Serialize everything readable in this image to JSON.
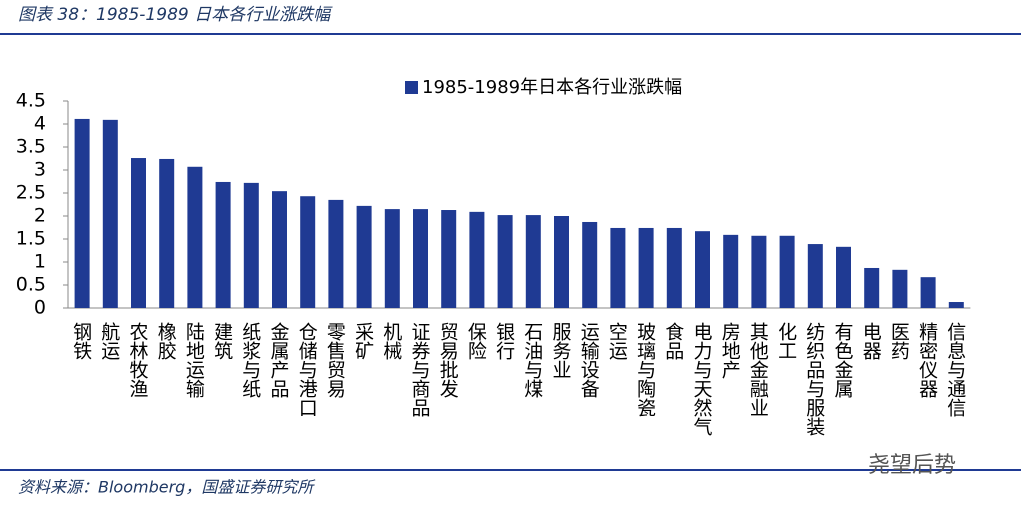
{
  "chart_data": {
    "type": "bar",
    "title": "图表 38：1985-1989 日本各行业涨跌幅",
    "categories": [
      "钢铁",
      "航运",
      "农林牧渔",
      "橡胶",
      "陆地运输",
      "建筑",
      "纸浆与纸",
      "金属产品",
      "仓储与港口",
      "零售贸易",
      "采矿",
      "机械",
      "证券与商品",
      "贸易批发",
      "保险",
      "银行",
      "石油与煤",
      "服务业",
      "运输设备",
      "空运",
      "玻璃与陶瓷",
      "食品",
      "电力与天然气",
      "房地产",
      "其他金融业",
      "化工",
      "纺织品与服装",
      "有色金属",
      "电器",
      "医药",
      "精密仪器",
      "信息与通信"
    ],
    "series": [
      {
        "name": "1985-1989年日本各行业涨跌幅",
        "color": "#1f3a93",
        "values": [
          4.11,
          4.09,
          3.26,
          3.24,
          3.07,
          2.74,
          2.72,
          2.54,
          2.43,
          2.35,
          2.22,
          2.15,
          2.15,
          2.13,
          2.09,
          2.02,
          2.02,
          2.0,
          1.87,
          1.74,
          1.74,
          1.74,
          1.67,
          1.59,
          1.57,
          1.57,
          1.39,
          1.33,
          0.87,
          0.83,
          0.67,
          0.13
        ]
      }
    ],
    "ylim": [
      0,
      4.5
    ],
    "yticks": [
      0,
      0.5,
      1,
      1.5,
      2,
      2.5,
      3,
      3.5,
      4,
      4.5
    ],
    "grid": false,
    "legend": "top"
  },
  "source": "资料来源：Bloomberg，国盛证券研究所",
  "watermark": "尧望后势"
}
